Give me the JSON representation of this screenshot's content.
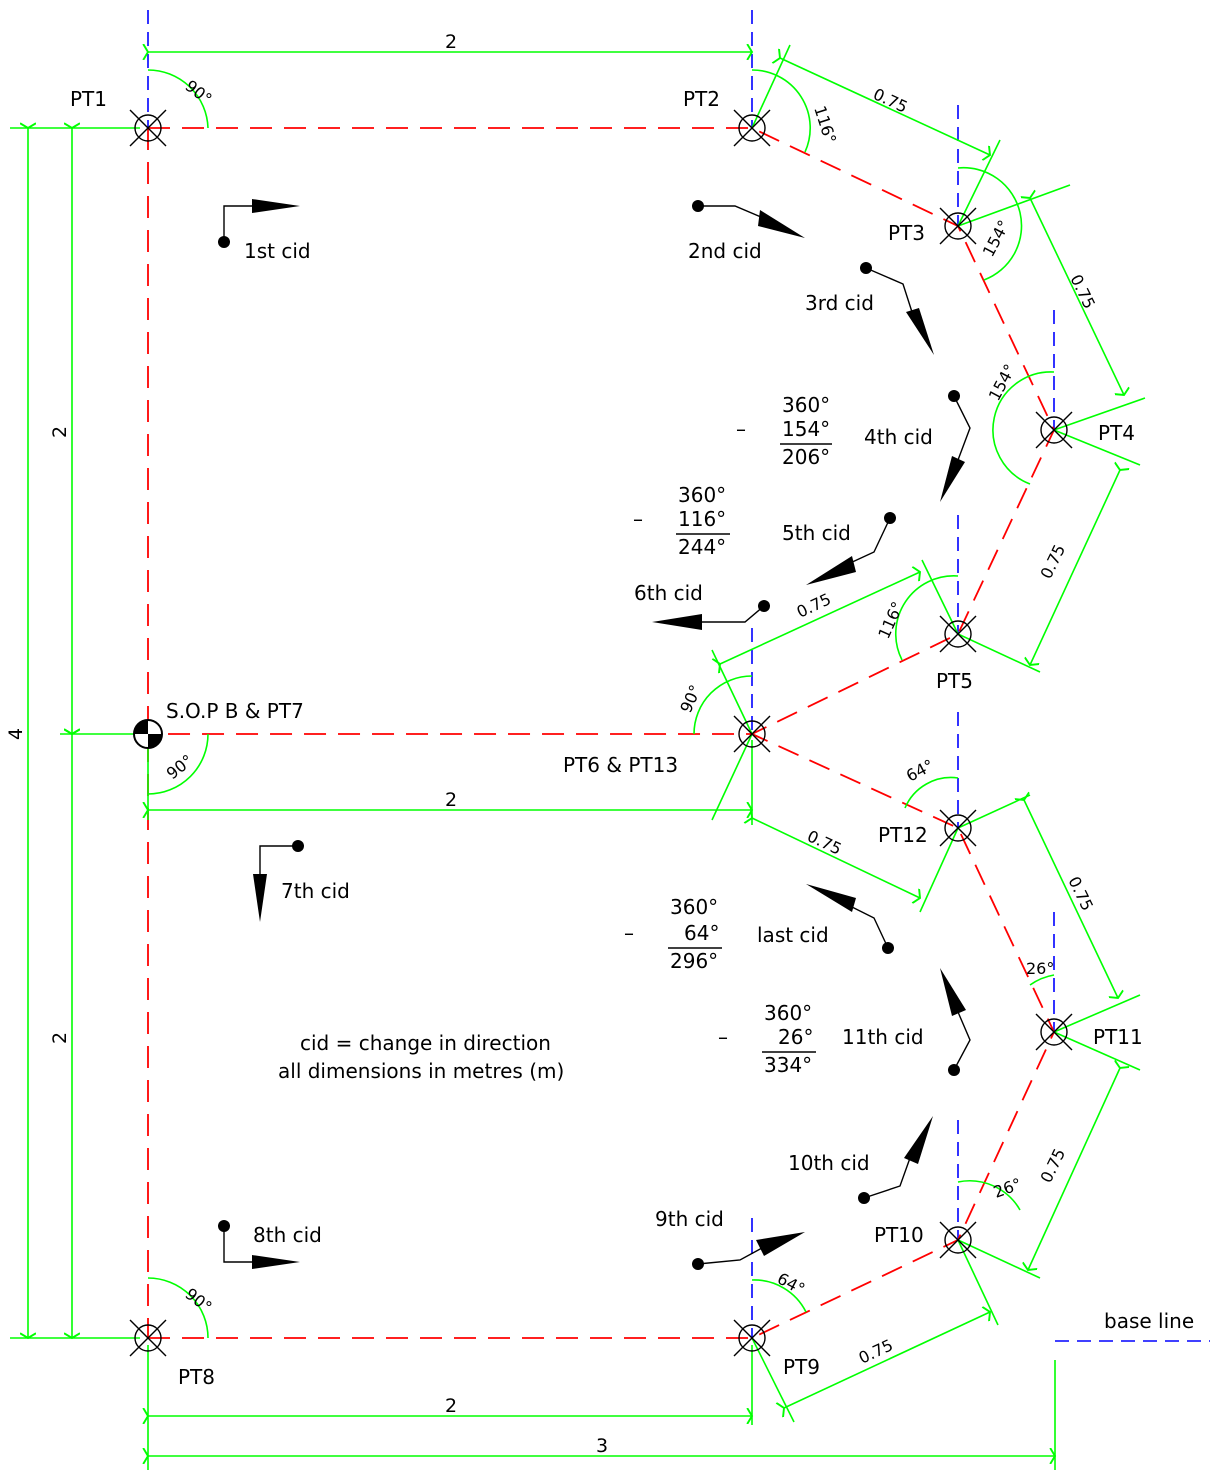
{
  "points": {
    "pt1": "PT1",
    "pt2": "PT2",
    "pt3": "PT3",
    "pt4": "PT4",
    "pt5": "PT5",
    "pt6_13": "PT6 & PT13",
    "sop_pt7": "S.O.P B & PT7",
    "pt8": "PT8",
    "pt9": "PT9",
    "pt10": "PT10",
    "pt11": "PT11",
    "pt12": "PT12"
  },
  "cid_labels": {
    "c1": "1st cid",
    "c2": "2nd cid",
    "c3": "3rd cid",
    "c4": "4th cid",
    "c5": "5th cid",
    "c6": "6th cid",
    "c7": "7th cid",
    "c8": "8th cid",
    "c9": "9th cid",
    "c10": "10th cid",
    "c11": "11th cid",
    "clast": "last cid"
  },
  "angles": {
    "pt1": "90°",
    "pt2": "116°",
    "pt3": "154°",
    "pt4": "154°",
    "pt5": "116°",
    "pt6": "90°",
    "pt7": "90°",
    "pt8": "90°",
    "pt9": "64°",
    "pt10": "26°",
    "pt11": "26°",
    "pt12": "64°"
  },
  "calcs": {
    "c4": {
      "op": "–",
      "a": "360°",
      "b": "154°",
      "r": "206°"
    },
    "c5": {
      "op": "–",
      "a": "360°",
      "b": "116°",
      "r": "244°"
    },
    "clast": {
      "op": "–",
      "a": "360°",
      "b": "64°",
      "r": "296°"
    },
    "c11": {
      "op": "–",
      "a": "360°",
      "b": "26°",
      "r": "334°"
    }
  },
  "dims": {
    "top": "2",
    "mid": "2",
    "bottom": "2",
    "overall": "3",
    "left_total": "4",
    "left_upper": "2",
    "left_lower": "2",
    "seg": "0.75"
  },
  "notes": {
    "line1": "cid = change in direction",
    "line2": "all dimensions in metres (m)",
    "baseline": "base line"
  },
  "colors": {
    "dimension": "#00ff00",
    "path": "#ff0000",
    "baseline": "#0000ff",
    "ink": "#000000"
  }
}
